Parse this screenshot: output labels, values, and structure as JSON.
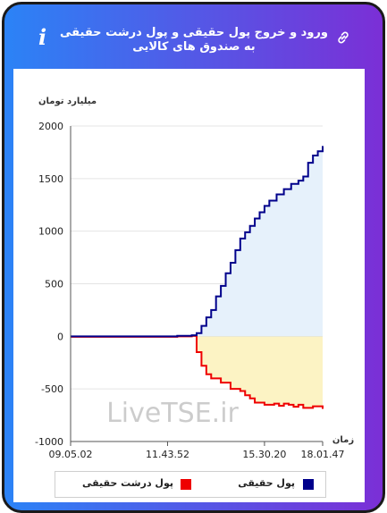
{
  "header": {
    "title": "ورود و خروج پول حقیقی و پول درشت حقیقی به صندوق های کالایی",
    "info_glyph": "i",
    "info_icon": "info-icon",
    "link_icon": "link-icon"
  },
  "watermark": "LiveTSE.ir",
  "colors": {
    "header_gradient": [
      "#2b83f6",
      "#7b2fd6"
    ],
    "positive_line": "#00008b",
    "positive_fill": "#e6f1fb",
    "negative_line": "#ee0000",
    "negative_fill": "#fcf3c4"
  },
  "chart_data": {
    "type": "area",
    "ylabel": "میلیارد تومان",
    "xlabel": "زمان",
    "ylim": [
      -1000,
      2000
    ],
    "y_ticks": [
      2000,
      1500,
      1000,
      500,
      0,
      -500,
      -1000
    ],
    "x_ticks": [
      "09.05.02",
      "11.43.52",
      "15.30.20",
      "18.01.47"
    ],
    "series": [
      {
        "name": "پول حقیقی",
        "color": "#00008b",
        "points": [
          [
            0,
            0
          ],
          [
            0.44,
            5
          ],
          [
            0.5,
            10
          ],
          [
            0.52,
            30
          ],
          [
            0.54,
            100
          ],
          [
            0.56,
            180
          ],
          [
            0.58,
            250
          ],
          [
            0.6,
            380
          ],
          [
            0.62,
            480
          ],
          [
            0.64,
            600
          ],
          [
            0.66,
            700
          ],
          [
            0.68,
            820
          ],
          [
            0.7,
            930
          ],
          [
            0.72,
            990
          ],
          [
            0.74,
            1050
          ],
          [
            0.76,
            1120
          ],
          [
            0.78,
            1180
          ],
          [
            0.8,
            1240
          ],
          [
            0.82,
            1290
          ],
          [
            0.85,
            1350
          ],
          [
            0.88,
            1400
          ],
          [
            0.91,
            1450
          ],
          [
            0.94,
            1480
          ],
          [
            0.96,
            1520
          ],
          [
            0.98,
            1650
          ],
          [
            1.0,
            1720
          ],
          [
            1.02,
            1760
          ],
          [
            1.04,
            1810
          ]
        ]
      },
      {
        "name": "پول درشت حقیقی",
        "color": "#ee0000",
        "points": [
          [
            0,
            -5
          ],
          [
            0.44,
            0
          ],
          [
            0.5,
            5
          ],
          [
            0.52,
            -150
          ],
          [
            0.54,
            -280
          ],
          [
            0.56,
            -360
          ],
          [
            0.58,
            -400
          ],
          [
            0.62,
            -440
          ],
          [
            0.66,
            -500
          ],
          [
            0.7,
            -520
          ],
          [
            0.72,
            -560
          ],
          [
            0.74,
            -590
          ],
          [
            0.76,
            -630
          ],
          [
            0.8,
            -650
          ],
          [
            0.84,
            -640
          ],
          [
            0.86,
            -660
          ],
          [
            0.88,
            -640
          ],
          [
            0.9,
            -650
          ],
          [
            0.92,
            -670
          ],
          [
            0.94,
            -650
          ],
          [
            0.96,
            -680
          ],
          [
            1.0,
            -665
          ],
          [
            1.04,
            -690
          ]
        ]
      }
    ]
  },
  "legend": [
    {
      "label": "پول حقیقی",
      "color": "#00008b"
    },
    {
      "label": "پول درشت حقیقی",
      "color": "#ee0000"
    }
  ]
}
